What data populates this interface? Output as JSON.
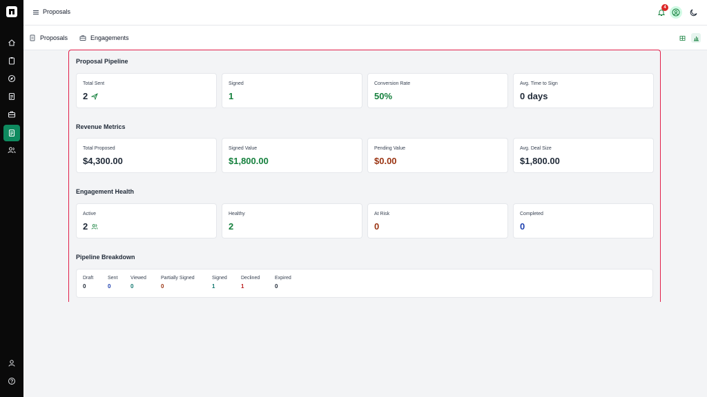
{
  "app": {
    "page_title": "Proposals"
  },
  "notifications": {
    "count": "4"
  },
  "subnav": {
    "tabs": [
      {
        "label": "Proposals"
      },
      {
        "label": "Engagements"
      }
    ]
  },
  "sections": {
    "pipeline": {
      "title": "Proposal Pipeline",
      "cards": [
        {
          "label": "Total Sent",
          "value": "2"
        },
        {
          "label": "Signed",
          "value": "1"
        },
        {
          "label": "Conversion Rate",
          "value": "50%"
        },
        {
          "label": "Avg. Time to Sign",
          "value": "0 days"
        }
      ]
    },
    "revenue": {
      "title": "Revenue Metrics",
      "cards": [
        {
          "label": "Total Proposed",
          "value": "$4,300.00"
        },
        {
          "label": "Signed Value",
          "value": "$1,800.00"
        },
        {
          "label": "Pending Value",
          "value": "$0.00"
        },
        {
          "label": "Avg. Deal Size",
          "value": "$1,800.00"
        }
      ]
    },
    "health": {
      "title": "Engagement Health",
      "cards": [
        {
          "label": "Active",
          "value": "2"
        },
        {
          "label": "Healthy",
          "value": "2"
        },
        {
          "label": "At Risk",
          "value": "0"
        },
        {
          "label": "Completed",
          "value": "0"
        }
      ]
    },
    "breakdown": {
      "title": "Pipeline Breakdown",
      "items": [
        {
          "label": "Draft",
          "value": "0"
        },
        {
          "label": "Sent",
          "value": "0"
        },
        {
          "label": "Viewed",
          "value": "0"
        },
        {
          "label": "Partially Signed",
          "value": "0"
        },
        {
          "label": "Signed",
          "value": "1"
        },
        {
          "label": "Declined",
          "value": "1"
        },
        {
          "label": "Expired",
          "value": "0"
        }
      ]
    }
  },
  "colors": {
    "accent": "#0e8a5f",
    "highlight_border": "#e11d48",
    "badge": "#dc2626"
  },
  "icons": {
    "sidebar": [
      "home-icon",
      "clipboard-icon",
      "compass-icon",
      "document-icon",
      "briefcase-icon",
      "proposal-document-icon",
      "users-icon",
      "user-icon",
      "help-icon"
    ]
  }
}
